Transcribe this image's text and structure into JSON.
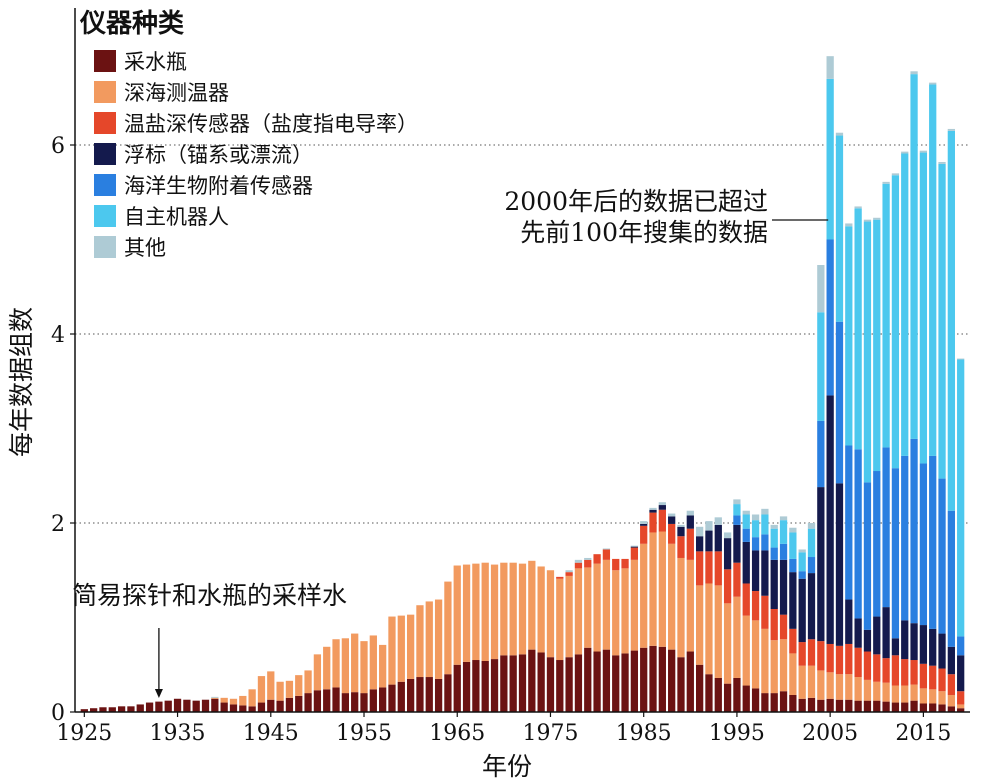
{
  "chart_data": {
    "type": "bar",
    "stacked": true,
    "xlabel": "年份",
    "ylabel": "每年数据组数",
    "ylim": [
      0,
      8
    ],
    "yticks": [
      0,
      2,
      4,
      6
    ],
    "ytick_labels": [
      "0",
      "2",
      "4",
      "6"
    ],
    "grid": "horizontal dotted",
    "xticks": [
      1925,
      1935,
      1945,
      1955,
      1965,
      1975,
      1985,
      1995,
      2005,
      2015
    ],
    "xlim": [
      1924,
      2020
    ],
    "legend": {
      "title": "仪器种类",
      "placement": "top-left",
      "entries": [
        {
          "name": "采水瓶",
          "color": "#6b1212"
        },
        {
          "name": "深海测温器",
          "color": "#f29a5f"
        },
        {
          "name": "温盐深传感器（盐度指电导率）",
          "color": "#e5472a"
        },
        {
          "name": "浮标（锚系或漂流）",
          "color": "#141a4d"
        },
        {
          "name": "海洋生物附着传感器",
          "color": "#2a7fe0"
        },
        {
          "name": "自主机器人",
          "color": "#4cc8ee"
        },
        {
          "name": "其他",
          "color": "#aecbd5"
        }
      ]
    },
    "series_order": [
      "采水瓶",
      "深海测温器",
      "温盐深传感器（盐度指电导率）",
      "浮标（锚系或漂流）",
      "海洋生物附着传感器",
      "自主机器人",
      "其他"
    ],
    "years": [
      1925,
      1926,
      1927,
      1928,
      1929,
      1930,
      1931,
      1932,
      1933,
      1934,
      1935,
      1936,
      1937,
      1938,
      1939,
      1940,
      1941,
      1942,
      1943,
      1944,
      1945,
      1946,
      1947,
      1948,
      1949,
      1950,
      1951,
      1952,
      1953,
      1954,
      1955,
      1956,
      1957,
      1958,
      1959,
      1960,
      1961,
      1962,
      1963,
      1964,
      1965,
      1966,
      1967,
      1968,
      1969,
      1970,
      1971,
      1972,
      1973,
      1974,
      1975,
      1976,
      1977,
      1978,
      1979,
      1980,
      1981,
      1982,
      1983,
      1984,
      1985,
      1986,
      1987,
      1988,
      1989,
      1990,
      1991,
      1992,
      1993,
      1994,
      1995,
      1996,
      1997,
      1998,
      1999,
      2000,
      2001,
      2002,
      2003,
      2004,
      2005,
      2006,
      2007,
      2008,
      2009,
      2010,
      2011,
      2012,
      2013,
      2014,
      2015,
      2016,
      2017,
      2018,
      2019
    ],
    "series": [
      {
        "name": "采水瓶",
        "values": [
          0.03,
          0.04,
          0.05,
          0.05,
          0.06,
          0.06,
          0.08,
          0.1,
          0.11,
          0.12,
          0.14,
          0.13,
          0.12,
          0.13,
          0.14,
          0.1,
          0.08,
          0.07,
          0.06,
          0.1,
          0.13,
          0.12,
          0.15,
          0.17,
          0.2,
          0.23,
          0.24,
          0.26,
          0.2,
          0.21,
          0.2,
          0.24,
          0.26,
          0.29,
          0.32,
          0.35,
          0.37,
          0.37,
          0.35,
          0.4,
          0.5,
          0.53,
          0.55,
          0.54,
          0.56,
          0.6,
          0.6,
          0.61,
          0.66,
          0.63,
          0.58,
          0.55,
          0.58,
          0.61,
          0.68,
          0.64,
          0.66,
          0.6,
          0.62,
          0.65,
          0.68,
          0.7,
          0.69,
          0.66,
          0.58,
          0.64,
          0.5,
          0.4,
          0.36,
          0.3,
          0.36,
          0.28,
          0.25,
          0.2,
          0.2,
          0.22,
          0.18,
          0.14,
          0.15,
          0.13,
          0.14,
          0.13,
          0.13,
          0.12,
          0.12,
          0.12,
          0.11,
          0.1,
          0.1,
          0.12,
          0.09,
          0.09,
          0.08,
          0.06,
          0.04
        ]
      },
      {
        "name": "深海测温器",
        "values": [
          0,
          0,
          0,
          0,
          0,
          0,
          0,
          0,
          0,
          0,
          0,
          0,
          0,
          0,
          0.01,
          0.05,
          0.06,
          0.1,
          0.18,
          0.28,
          0.3,
          0.2,
          0.18,
          0.22,
          0.24,
          0.38,
          0.45,
          0.51,
          0.58,
          0.62,
          0.55,
          0.57,
          0.45,
          0.72,
          0.7,
          0.68,
          0.76,
          0.8,
          0.84,
          0.98,
          1.05,
          1.03,
          1.02,
          1.04,
          1.0,
          0.98,
          0.98,
          0.96,
          0.94,
          0.91,
          0.92,
          0.86,
          0.86,
          0.91,
          0.85,
          0.93,
          0.95,
          0.9,
          0.9,
          0.96,
          1.1,
          1.2,
          1.22,
          1.12,
          1.05,
          0.97,
          0.84,
          0.96,
          0.98,
          0.85,
          0.86,
          0.74,
          0.72,
          0.68,
          0.56,
          0.55,
          0.44,
          0.35,
          0.34,
          0.31,
          0.28,
          0.27,
          0.27,
          0.25,
          0.22,
          0.2,
          0.2,
          0.18,
          0.18,
          0.17,
          0.16,
          0.15,
          0.14,
          0.12,
          0.04
        ]
      },
      {
        "name": "温盐深传感器（盐度指电导率）",
        "values": [
          0,
          0,
          0,
          0,
          0,
          0,
          0,
          0,
          0,
          0,
          0,
          0,
          0,
          0,
          0,
          0,
          0,
          0,
          0,
          0,
          0,
          0,
          0,
          0,
          0,
          0,
          0,
          0,
          0,
          0,
          0,
          0,
          0,
          0,
          0,
          0,
          0,
          0,
          0,
          0,
          0,
          0,
          0,
          0,
          0,
          0,
          0,
          0,
          0,
          0,
          0,
          0.02,
          0.04,
          0.06,
          0.08,
          0.1,
          0.11,
          0.12,
          0.1,
          0.13,
          0.19,
          0.21,
          0.23,
          0.21,
          0.23,
          0.33,
          0.36,
          0.34,
          0.36,
          0.36,
          0.36,
          0.34,
          0.31,
          0.35,
          0.33,
          0.26,
          0.26,
          0.25,
          0.28,
          0.31,
          0.3,
          0.3,
          0.32,
          0.31,
          0.3,
          0.29,
          0.26,
          0.32,
          0.28,
          0.26,
          0.26,
          0.25,
          0.24,
          0.22,
          0.14
        ]
      },
      {
        "name": "浮标（锚系或漂流）",
        "values": [
          0,
          0,
          0,
          0,
          0,
          0,
          0,
          0,
          0,
          0,
          0,
          0,
          0,
          0,
          0,
          0,
          0,
          0,
          0,
          0,
          0,
          0,
          0,
          0,
          0,
          0,
          0,
          0,
          0,
          0,
          0,
          0,
          0,
          0,
          0,
          0,
          0,
          0,
          0,
          0,
          0,
          0,
          0,
          0,
          0,
          0,
          0,
          0,
          0,
          0,
          0,
          0,
          0,
          0,
          0,
          0,
          0,
          0,
          0,
          0.01,
          0.02,
          0.03,
          0.05,
          0.08,
          0.1,
          0.14,
          0.16,
          0.22,
          0.28,
          0.33,
          0.4,
          0.44,
          0.43,
          0.48,
          0.52,
          0.58,
          0.6,
          0.67,
          0.7,
          1.63,
          2.63,
          1.72,
          0.47,
          0.31,
          0.23,
          0.4,
          0.54,
          0.18,
          0.41,
          0.39,
          0.41,
          0.39,
          0.37,
          0.29,
          0.38
        ]
      },
      {
        "name": "海洋生物附着传感器",
        "values": [
          0,
          0,
          0,
          0,
          0,
          0,
          0,
          0,
          0,
          0,
          0,
          0,
          0,
          0,
          0,
          0,
          0,
          0,
          0,
          0,
          0,
          0,
          0,
          0,
          0,
          0,
          0,
          0,
          0,
          0,
          0,
          0,
          0,
          0,
          0,
          0,
          0,
          0,
          0,
          0,
          0,
          0,
          0,
          0,
          0,
          0,
          0,
          0,
          0,
          0,
          0,
          0,
          0,
          0,
          0,
          0,
          0,
          0,
          0,
          0,
          0,
          0,
          0,
          0,
          0,
          0,
          0,
          0,
          0,
          0,
          0.1,
          0.14,
          0.14,
          0.17,
          0.13,
          0.17,
          0.14,
          0.08,
          0.17,
          0.7,
          1.65,
          1.71,
          1.63,
          1.79,
          1.56,
          1.54,
          1.69,
          1.8,
          1.74,
          1.95,
          1.71,
          1.83,
          1.64,
          1.44,
          0.2
        ]
      },
      {
        "name": "自主机器人",
        "values": [
          0,
          0,
          0,
          0,
          0,
          0,
          0,
          0,
          0,
          0,
          0,
          0,
          0,
          0,
          0,
          0,
          0,
          0,
          0,
          0,
          0,
          0,
          0,
          0,
          0,
          0,
          0,
          0,
          0,
          0,
          0,
          0,
          0,
          0,
          0,
          0,
          0,
          0,
          0,
          0,
          0,
          0,
          0,
          0,
          0,
          0,
          0,
          0,
          0,
          0,
          0,
          0,
          0,
          0,
          0,
          0,
          0,
          0,
          0,
          0,
          0,
          0,
          0,
          0,
          0,
          0,
          0,
          0,
          0,
          0,
          0.12,
          0.15,
          0.18,
          0.21,
          0.2,
          0.25,
          0.28,
          0.2,
          0.3,
          1.15,
          1.7,
          1.97,
          2.32,
          2.55,
          2.76,
          2.66,
          2.79,
          3.1,
          3.2,
          3.86,
          3.29,
          3.93,
          3.33,
          4.02,
          2.93
        ]
      },
      {
        "name": "其他",
        "values": [
          0,
          0,
          0,
          0,
          0,
          0,
          0,
          0,
          0,
          0,
          0,
          0,
          0,
          0,
          0.01,
          0,
          0,
          0,
          0,
          0,
          0,
          0,
          0,
          0,
          0,
          0,
          0,
          0,
          0,
          0,
          0,
          0,
          0,
          0,
          0,
          0,
          0,
          0,
          0,
          0,
          0,
          0,
          0,
          0,
          0,
          0,
          0,
          0,
          0,
          0,
          0,
          0,
          0.02,
          0.03,
          0.02,
          0,
          0.01,
          0,
          0,
          0.01,
          0.03,
          0.02,
          0.03,
          0.03,
          0.02,
          0.05,
          0.1,
          0.1,
          0.08,
          0.06,
          0.05,
          0.04,
          0.06,
          0.06,
          0.04,
          0.04,
          0.05,
          0.03,
          0.06,
          0.5,
          0.24,
          0.03,
          0.03,
          0.02,
          0.02,
          0.02,
          0.02,
          0.02,
          0.02,
          0.03,
          0.02,
          0.02,
          0.02,
          0.02,
          0.01
        ]
      }
    ],
    "annotations": [
      {
        "text": "2000年后的数据已超过\n先前100年搜集的数据",
        "x": 2005,
        "y": 5.4
      },
      {
        "text": "简易探针和水瓶的采样水",
        "x": 1933,
        "y": 0.1
      }
    ]
  }
}
